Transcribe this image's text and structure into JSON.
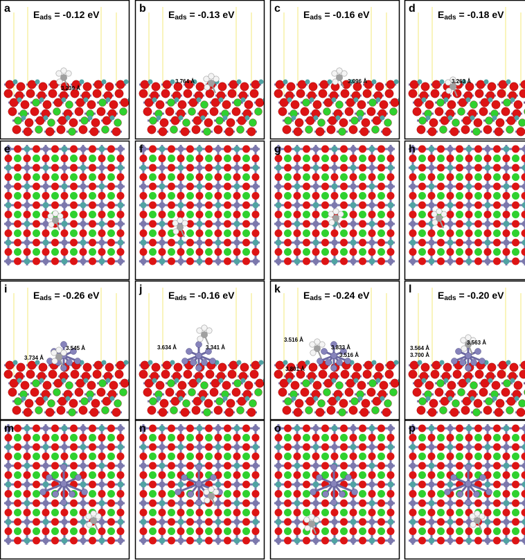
{
  "panels": [
    {
      "label": "a",
      "energy": {
        "symbol": "E",
        "subscript": "ads",
        "value": " = -0.12 eV"
      },
      "distances": [
        "3.239 Å"
      ]
    },
    {
      "label": "b",
      "energy": {
        "symbol": "E",
        "subscript": "ads",
        "value": " = -0.13 eV"
      },
      "distances": [
        "3.764 Å"
      ]
    },
    {
      "label": "c",
      "energy": {
        "symbol": "E",
        "subscript": "ads",
        "value": " = -0.16 eV"
      },
      "distances": [
        "3.096 Å"
      ]
    },
    {
      "label": "d",
      "energy": {
        "symbol": "E",
        "subscript": "ads",
        "value": " = -0.18 eV"
      },
      "distances": [
        "3.263 Å"
      ]
    },
    {
      "label": "e"
    },
    {
      "label": "f"
    },
    {
      "label": "g"
    },
    {
      "label": "h"
    },
    {
      "label": "i",
      "energy": {
        "symbol": "E",
        "subscript": "ads",
        "value": " = -0.26 eV"
      },
      "distances": [
        "3.734 Å",
        "3.545 Å"
      ]
    },
    {
      "label": "j",
      "energy": {
        "symbol": "E",
        "subscript": "ads",
        "value": " = -0.16 eV"
      },
      "distances": [
        "3.634 Å",
        "3.341 Å"
      ]
    },
    {
      "label": "k",
      "energy": {
        "symbol": "E",
        "subscript": "ads",
        "value": " = -0.24 eV"
      },
      "distances": [
        "3.516 Å",
        "3.833 Å",
        "3.516 Å",
        "3.801 Å"
      ]
    },
    {
      "label": "l",
      "energy": {
        "symbol": "E",
        "subscript": "ads",
        "value": " = -0.20 eV"
      },
      "distances": [
        "3.564 Å",
        "3.700 Å",
        "3.563 Å"
      ]
    },
    {
      "label": "m"
    },
    {
      "label": "n"
    },
    {
      "label": "o"
    },
    {
      "label": "p"
    }
  ]
}
